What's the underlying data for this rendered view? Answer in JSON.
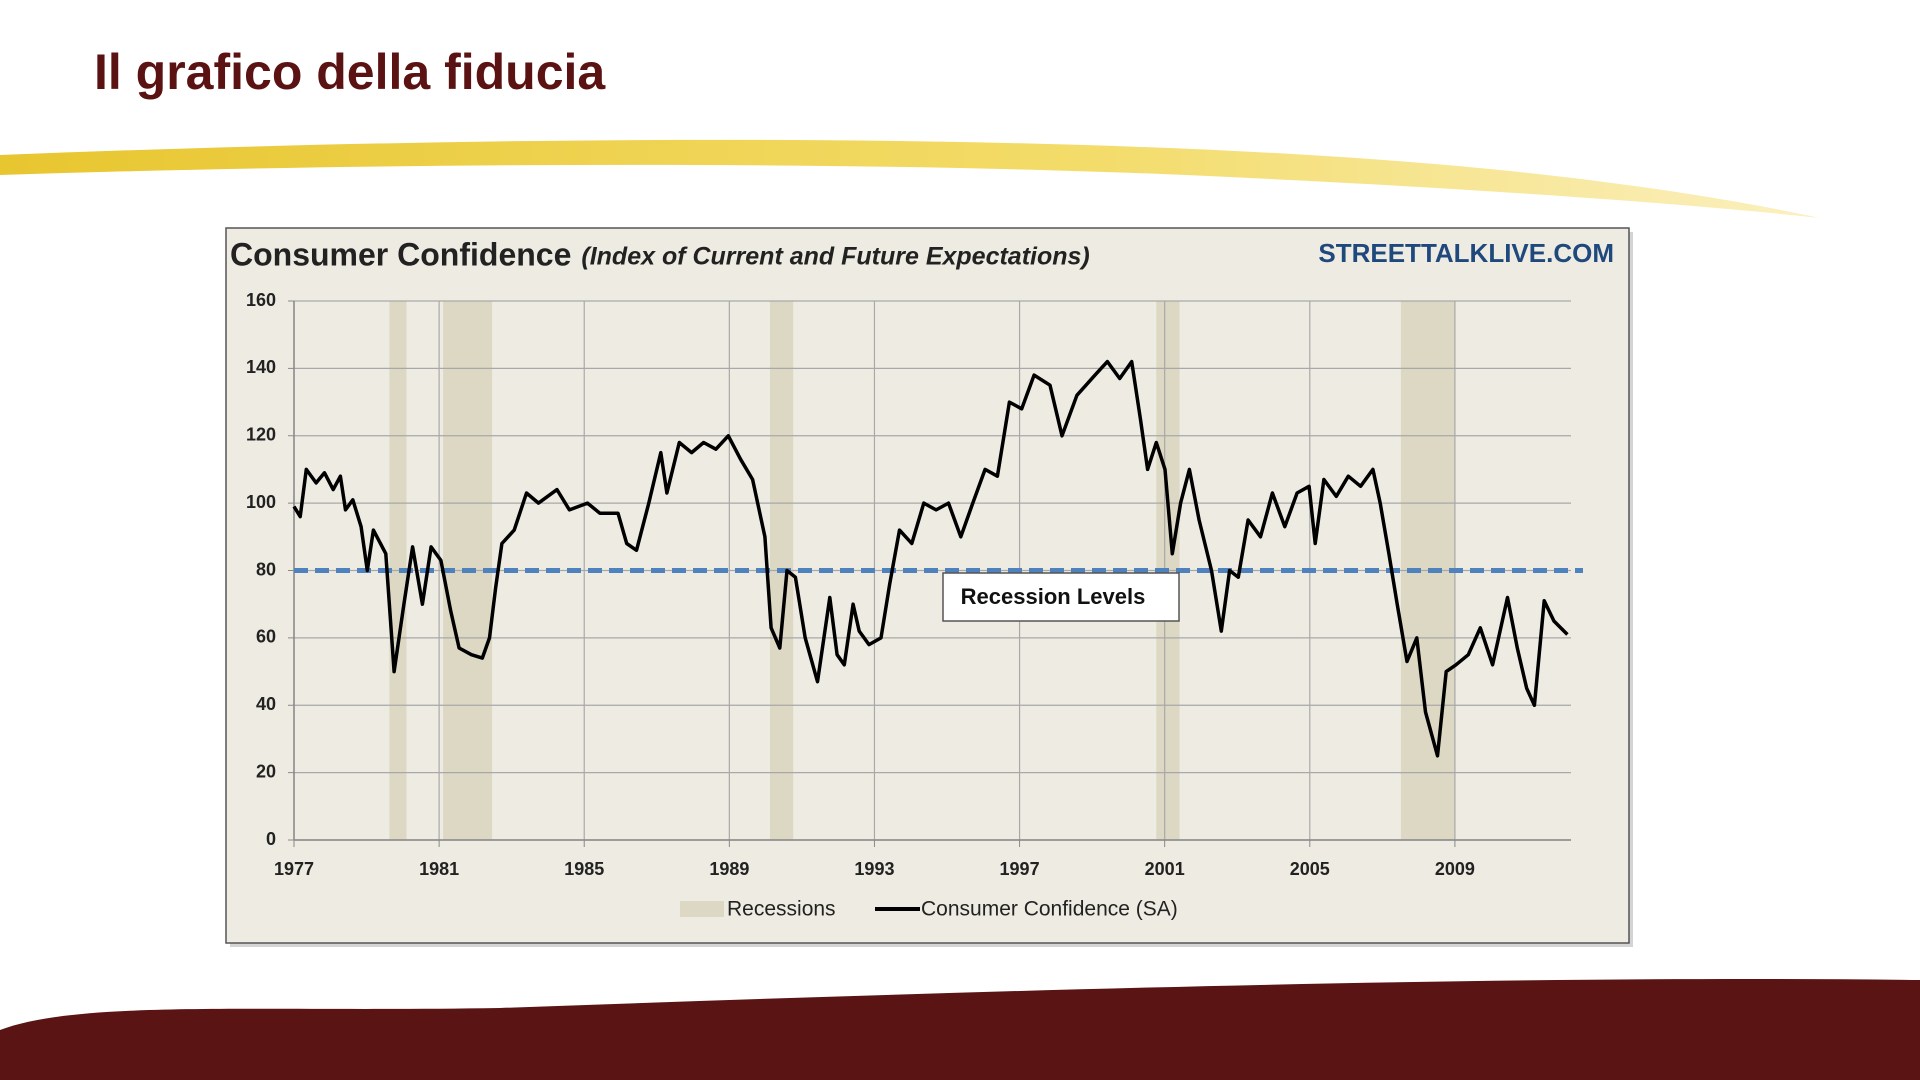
{
  "slide": {
    "title": "Il grafico della fiducia"
  },
  "chart_data": {
    "type": "line",
    "title": "Consumer Confidence",
    "subtitle": "(Index of Current and Future Expectations)",
    "source": "STREETTALKLIVE.COM",
    "x": [
      1977.0,
      1977.17,
      1977.34,
      1977.61,
      1977.84,
      1978.08,
      1978.28,
      1978.42,
      1978.62,
      1978.85,
      1979.02,
      1979.19,
      1979.53,
      1979.76,
      1980.03,
      1980.27,
      1980.54,
      1980.78,
      1981.05,
      1981.32,
      1981.55,
      1981.89,
      1982.19,
      1982.39,
      1982.56,
      1982.73,
      1983.07,
      1983.41,
      1983.74,
      1984.25,
      1984.59,
      1985.09,
      1985.43,
      1985.93,
      1986.17,
      1986.44,
      1986.78,
      1987.11,
      1987.28,
      1987.62,
      1987.96,
      1988.29,
      1988.63,
      1988.97,
      1989.31,
      1989.64,
      1989.98,
      1990.15,
      1990.39,
      1990.59,
      1990.82,
      1991.09,
      1991.43,
      1991.77,
      1991.97,
      1992.17,
      1992.41,
      1992.58,
      1992.85,
      1993.18,
      1993.42,
      1993.69,
      1994.03,
      1994.36,
      1994.7,
      1995.04,
      1995.38,
      1995.71,
      1996.05,
      1996.39,
      1996.72,
      1997.06,
      1997.4,
      1997.84,
      1998.17,
      1998.58,
      1999.08,
      1999.42,
      1999.76,
      2000.09,
      2000.33,
      2000.53,
      2000.77,
      2001.01,
      2001.21,
      2001.44,
      2001.68,
      2001.95,
      2002.29,
      2002.56,
      2002.79,
      2003.03,
      2003.3,
      2003.64,
      2003.97,
      2004.31,
      2004.65,
      2004.98,
      2005.15,
      2005.39,
      2005.73,
      2006.06,
      2006.4,
      2006.74,
      2006.94,
      2007.18,
      2007.41,
      2007.68,
      2007.95,
      2008.19,
      2008.52,
      2008.76,
      2009.03,
      2009.37,
      2009.7,
      2010.04,
      2010.45,
      2010.72,
      2010.98,
      2011.19,
      2011.46,
      2011.73,
      2012.1
    ],
    "series": [
      {
        "name": "Consumer Confidence (SA)",
        "color": "#000000",
        "values": [
          99,
          96,
          110,
          106,
          109,
          104,
          108,
          98,
          101,
          93,
          80,
          92,
          85,
          50,
          70,
          87,
          70,
          87,
          83,
          68,
          57,
          55,
          54,
          60,
          75,
          88,
          92,
          103,
          100,
          104,
          98,
          100,
          97,
          97,
          88,
          86,
          100,
          115,
          103,
          118,
          115,
          118,
          116,
          120,
          113,
          107,
          90,
          63,
          57,
          80,
          78,
          60,
          47,
          72,
          55,
          52,
          70,
          62,
          58,
          60,
          76,
          92,
          88,
          100,
          98,
          100,
          90,
          100,
          110,
          108,
          130,
          128,
          138,
          135,
          120,
          132,
          138,
          142,
          137,
          142,
          125,
          110,
          118,
          110,
          85,
          100,
          110,
          95,
          80,
          62,
          80,
          78,
          95,
          90,
          103,
          93,
          103,
          105,
          88,
          107,
          102,
          108,
          105,
          110,
          100,
          85,
          70,
          53,
          60,
          38,
          25,
          50,
          52,
          55,
          63,
          52,
          72,
          57,
          45,
          40,
          71,
          65,
          61
        ]
      }
    ],
    "recessions": {
      "name": "Recessions",
      "color": "#ddd8c4",
      "spans": [
        [
          1979.63,
          1980.1
        ],
        [
          1981.11,
          1982.46
        ],
        [
          1990.12,
          1990.76
        ],
        [
          2000.77,
          2001.41
        ],
        [
          2007.51,
          2009.0
        ]
      ]
    },
    "reference_line": {
      "value": 80,
      "label": "Recession Levels",
      "color": "#4f81bd"
    },
    "xlim": [
      1977,
      2012.2
    ],
    "xticks": [
      1977,
      1981,
      1985,
      1989,
      1993,
      1997,
      2001,
      2005,
      2009
    ],
    "ylim": [
      0,
      160
    ],
    "yticks": [
      0,
      20,
      40,
      60,
      80,
      100,
      120,
      140,
      160
    ],
    "grid": true
  }
}
